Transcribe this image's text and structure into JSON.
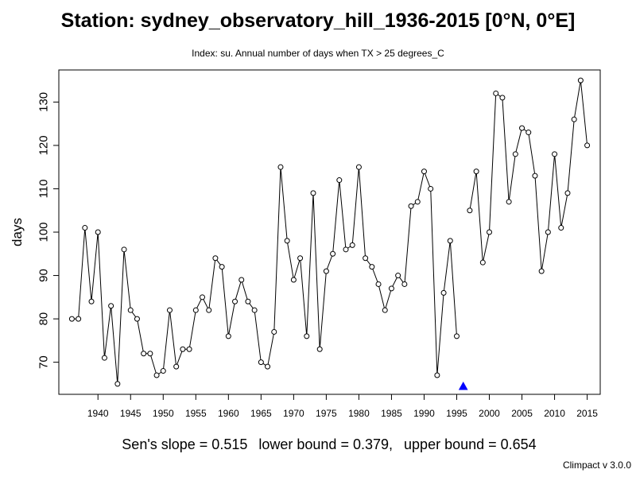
{
  "title": "Station: sydney_observatory_hill_1936-2015 [0°N, 0°E]",
  "subtitle": "Index: su. Annual number of days when TX > 25 degrees_C",
  "footer": {
    "slope": "Sen's slope = 0.515",
    "lower": "lower bound = 0.379,",
    "upper": "upper bound = 0.654"
  },
  "version": "Climpact v 3.0.0",
  "chart_data": {
    "type": "line",
    "ylabel": "days",
    "xlabel": "",
    "xlim": [
      1934,
      2017
    ],
    "ylim": [
      62.6,
      137.4
    ],
    "x_ticks": [
      1940,
      1945,
      1950,
      1955,
      1960,
      1965,
      1970,
      1975,
      1980,
      1985,
      1990,
      1995,
      2000,
      2005,
      2010,
      2015
    ],
    "y_ticks": [
      70,
      80,
      90,
      100,
      110,
      120,
      130
    ],
    "grid": false,
    "series": [
      {
        "x": [
          1936,
          1937,
          1938,
          1939,
          1940,
          1941,
          1942,
          1943,
          1944,
          1945,
          1946,
          1947,
          1948,
          1949,
          1950,
          1951,
          1952,
          1953,
          1954,
          1955,
          1956,
          1957,
          1958,
          1959,
          1960,
          1961,
          1962,
          1963,
          1964,
          1965,
          1966,
          1967,
          1968,
          1969,
          1970,
          1971,
          1972,
          1973,
          1974,
          1975,
          1976,
          1977,
          1978,
          1979,
          1980,
          1981,
          1982,
          1983,
          1984,
          1985,
          1986,
          1987,
          1988,
          1989,
          1990,
          1991,
          1992,
          1993,
          1994,
          1995,
          1996,
          1997,
          1998,
          1999,
          2000,
          2001,
          2002,
          2003,
          2004,
          2005,
          2006,
          2007,
          2008,
          2009,
          2010,
          2011,
          2012,
          2013,
          2014,
          2015
        ],
        "values": [
          80,
          80,
          101,
          84,
          100,
          71,
          83,
          65,
          96,
          82,
          80,
          72,
          72,
          67,
          68,
          82,
          69,
          73,
          73,
          82,
          85,
          82,
          94,
          92,
          76,
          84,
          89,
          84,
          82,
          70,
          69,
          77,
          115,
          98,
          89,
          94,
          76,
          109,
          73,
          91,
          95,
          112,
          96,
          97,
          115,
          94,
          92,
          88,
          82,
          87,
          90,
          88,
          106,
          107,
          114,
          110,
          67,
          86,
          98,
          76,
          null,
          105,
          114,
          93,
          100,
          132,
          131,
          107,
          118,
          124,
          123,
          113,
          91,
          100,
          118,
          101,
          109,
          126,
          135,
          120
        ]
      }
    ],
    "missing_marker": {
      "x": 1996,
      "color": "#0000ff"
    },
    "line_color": "#000000"
  }
}
